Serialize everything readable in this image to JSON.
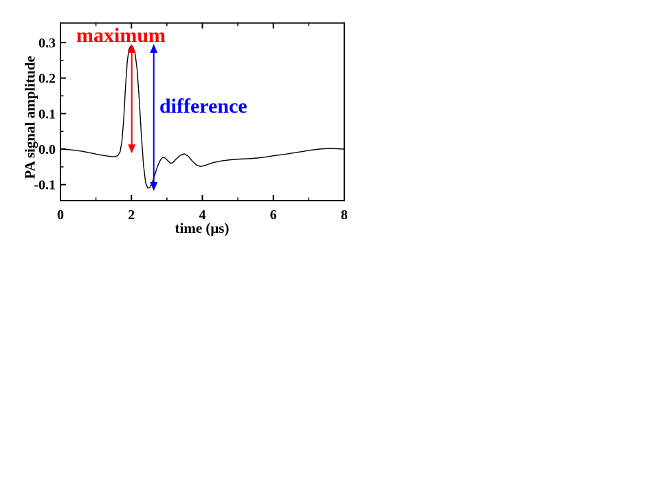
{
  "chart_data": {
    "type": "line",
    "title": "",
    "xlabel": "time (μs)",
    "ylabel": "PA signal amplitude",
    "xlim": [
      0,
      8
    ],
    "ylim": [
      -0.145,
      0.355
    ],
    "grid": false,
    "legend": "none",
    "background_color": "#ffffff",
    "axis_color": "#000000",
    "x_ticks_major": [
      0,
      2,
      4,
      6,
      8
    ],
    "x_tick_labels": [
      "0",
      "2",
      "4",
      "6",
      "8"
    ],
    "x_ticks_minor": [
      1,
      3,
      5,
      7
    ],
    "y_ticks_major": [
      0.3,
      0.2,
      0.1,
      0.0,
      -0.1
    ],
    "y_tick_labels": [
      "0.3",
      "0.2",
      "0.1",
      "0.0",
      "-0.1"
    ],
    "y_ticks_minor": [
      0.25,
      0.15,
      0.05,
      -0.05
    ],
    "series": [
      {
        "name": "PA signal",
        "color": "#000000",
        "x": [
          0.0,
          0.3,
          0.6,
          0.9,
          1.1,
          1.3,
          1.45,
          1.55,
          1.62,
          1.68,
          1.73,
          1.78,
          1.83,
          1.88,
          1.93,
          1.98,
          2.04,
          2.1,
          2.16,
          2.22,
          2.28,
          2.34,
          2.4,
          2.46,
          2.52,
          2.58,
          2.65,
          2.73,
          2.81,
          2.88,
          2.95,
          3.03,
          3.1,
          3.17,
          3.26,
          3.37,
          3.49,
          3.6,
          3.72,
          3.84,
          3.95,
          4.1,
          4.3,
          4.55,
          4.8,
          5.05,
          5.3,
          5.55,
          5.8,
          6.05,
          6.3,
          6.55,
          6.8,
          7.05,
          7.3,
          7.55,
          7.8,
          8.0
        ],
        "y": [
          0.0,
          -0.002,
          -0.006,
          -0.012,
          -0.016,
          -0.019,
          -0.021,
          -0.021,
          -0.018,
          -0.008,
          0.02,
          0.08,
          0.17,
          0.245,
          0.281,
          0.29,
          0.288,
          0.272,
          0.225,
          0.14,
          0.04,
          -0.045,
          -0.094,
          -0.11,
          -0.108,
          -0.096,
          -0.076,
          -0.05,
          -0.032,
          -0.023,
          -0.025,
          -0.033,
          -0.04,
          -0.038,
          -0.028,
          -0.018,
          -0.013,
          -0.02,
          -0.034,
          -0.045,
          -0.049,
          -0.045,
          -0.038,
          -0.033,
          -0.03,
          -0.028,
          -0.027,
          -0.025,
          -0.022,
          -0.018,
          -0.015,
          -0.011,
          -0.007,
          -0.003,
          0.0,
          0.002,
          0.001,
          0.0
        ]
      }
    ],
    "annotations": [
      {
        "id": "maximum",
        "label": "maximum",
        "color": "#ff0000",
        "arrow": {
          "x": 2.01,
          "v_top": 0.296,
          "v_bottom": -0.012,
          "style": "double-headed-vertical"
        }
      },
      {
        "id": "difference",
        "label": "difference",
        "color": "#0000ff",
        "arrow": {
          "x": 2.63,
          "v_top": 0.296,
          "v_bottom": -0.118,
          "style": "double-headed-vertical"
        }
      }
    ]
  }
}
